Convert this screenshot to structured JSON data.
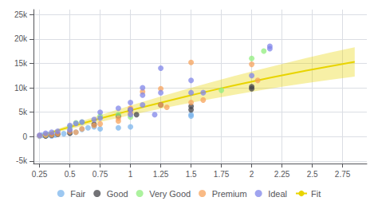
{
  "chart_data": {
    "type": "scatter",
    "xlim": [
      0.2,
      2.95
    ],
    "ylim": [
      -5500,
      26000
    ],
    "xticks": [
      0.25,
      0.5,
      0.75,
      1,
      1.25,
      1.5,
      1.75,
      2,
      2.25,
      2.5,
      2.75
    ],
    "yticks": [
      {
        "value": -5000,
        "label": "-5k"
      },
      0,
      {
        "value": 5000,
        "label": "5k"
      },
      {
        "value": 10000,
        "label": "10k"
      },
      {
        "value": 15000,
        "label": "15k"
      },
      {
        "value": 20000,
        "label": "20k"
      },
      {
        "value": 25000,
        "label": "25k"
      }
    ],
    "grid": true,
    "legend": "bottom",
    "series": [
      {
        "name": "Fair",
        "type": "scatter",
        "marker": "circle",
        "color": "#7cb5ec",
        "x": [
          0.25,
          0.27,
          0.3,
          0.32,
          0.35,
          0.38,
          0.4,
          0.45,
          0.5,
          0.5,
          0.55,
          0.6,
          0.65,
          0.7,
          0.75,
          0.9,
          1.0,
          1.5,
          1.5
        ],
        "values": [
          100,
          300,
          200,
          400,
          150,
          350,
          500,
          600,
          800,
          1200,
          900,
          1500,
          1800,
          2000,
          1600,
          1800,
          2000,
          4500,
          4200
        ]
      },
      {
        "name": "Good",
        "type": "scatter",
        "marker": "circle",
        "color": "#434348",
        "x": [
          0.3,
          0.35,
          0.4,
          0.5,
          0.7,
          0.9,
          1.0,
          1.05,
          1.25,
          1.5,
          1.5,
          2.0,
          2.0
        ],
        "values": [
          150,
          300,
          500,
          700,
          2500,
          4200,
          5500,
          4500,
          6500,
          5500,
          6200,
          10200,
          9800
        ]
      },
      {
        "name": "Very Good",
        "type": "scatter",
        "marker": "circle",
        "color": "#90ed7d",
        "x": [
          0.3,
          0.5,
          0.55,
          0.6,
          0.75,
          0.9,
          1.0,
          1.75,
          2.0,
          2.1
        ],
        "values": [
          400,
          2000,
          2800,
          3000,
          4200,
          4500,
          4000,
          9500,
          16000,
          17500
        ]
      },
      {
        "name": "Premium",
        "type": "scatter",
        "marker": "circle",
        "color": "#f7a35c",
        "x": [
          0.25,
          0.3,
          0.35,
          0.4,
          0.5,
          0.55,
          0.6,
          0.7,
          0.75,
          0.9,
          0.9,
          1.0,
          1.0,
          1.1,
          1.25,
          1.25,
          1.3,
          1.5,
          1.5,
          1.6,
          2.0,
          2.05
        ],
        "values": [
          200,
          350,
          400,
          600,
          1000,
          900,
          1600,
          2300,
          2600,
          3800,
          3200,
          4800,
          5800,
          9200,
          9800,
          6500,
          6000,
          7000,
          15200,
          7500,
          14800,
          11500
        ]
      },
      {
        "name": "Ideal",
        "type": "scatter",
        "marker": "circle",
        "color": "#8085e9",
        "x": [
          0.25,
          0.3,
          0.35,
          0.4,
          0.5,
          0.5,
          0.55,
          0.6,
          0.7,
          0.75,
          0.75,
          0.9,
          1.0,
          1.0,
          1.0,
          1.1,
          1.1,
          1.1,
          1.2,
          1.25,
          1.25,
          1.5,
          1.5,
          1.6,
          2.0,
          2.15,
          2.15
        ],
        "values": [
          300,
          700,
          900,
          1100,
          1400,
          2300,
          2700,
          3000,
          3500,
          3800,
          5000,
          5800,
          4500,
          5500,
          7000,
          6500,
          8500,
          10000,
          4500,
          9000,
          14000,
          9000,
          11500,
          9000,
          12500,
          18500,
          18000
        ]
      },
      {
        "name": "Fit",
        "type": "line",
        "line_style": "solid",
        "color": "#e8d400",
        "x": [
          0.25,
          0.45,
          0.65,
          0.85,
          1.05,
          1.25,
          1.45,
          1.65,
          1.85,
          2.05,
          2.25,
          2.45,
          2.65,
          2.85
        ],
        "values": [
          164.2,
          1619.8,
          3026.9,
          4385.4,
          5695.4,
          6956.8,
          8169.8,
          9334.2,
          10450.1,
          11517.4,
          12536.2,
          13506.5,
          14428.2,
          15301.4
        ],
        "band_lower": [
          14.2,
          1250.6,
          2438.4,
          3577.7,
          4668.5,
          5710.6,
          6704.4,
          7649.6,
          8546.3,
          9394.3,
          10193.9,
          10945.0,
          11647.4,
          12301.4
        ],
        "band_upper": [
          314.2,
          1989.0,
          3615.4,
          5193.1,
          6722.3,
          8203.0,
          9635.2,
          11018.8,
          12353.9,
          13640.5,
          14878.5,
          16068.0,
          17209.0,
          18301.4
        ]
      }
    ]
  }
}
